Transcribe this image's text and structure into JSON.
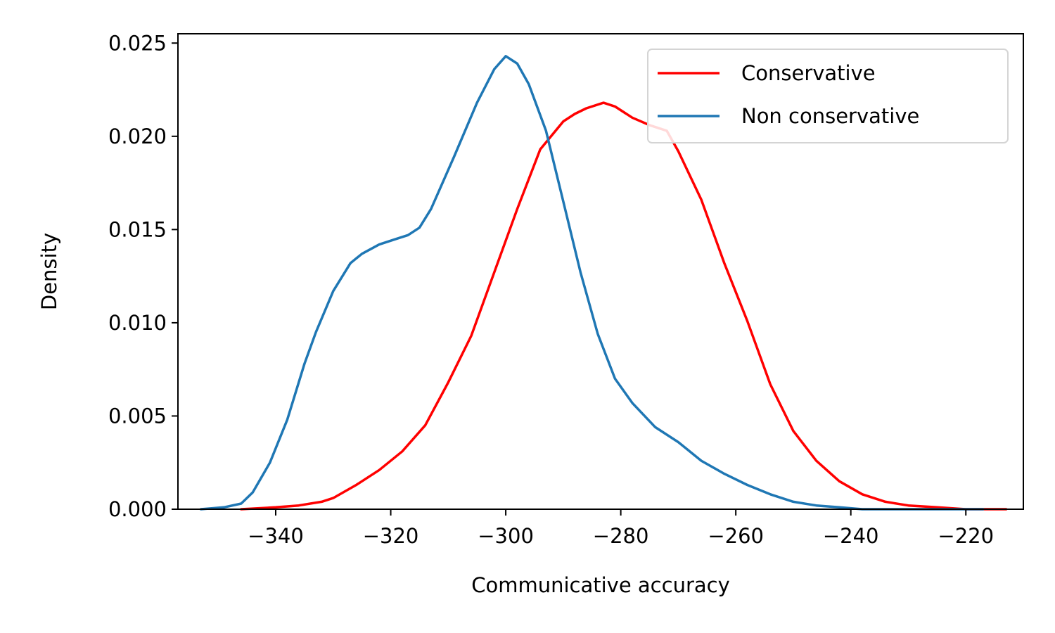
{
  "chart_data": {
    "type": "line",
    "title": "",
    "xlabel": "Communicative accuracy",
    "ylabel": "Density",
    "xlim": [
      -357,
      -210
    ],
    "ylim": [
      0,
      0.0255
    ],
    "xticks": [
      -340,
      -320,
      -300,
      -280,
      -260,
      -240,
      -220
    ],
    "xtick_labels": [
      "−340",
      "−320",
      "−300",
      "−280",
      "−260",
      "−240",
      "−220"
    ],
    "yticks": [
      0,
      0.005,
      0.01,
      0.015,
      0.02,
      0.025
    ],
    "ytick_labels": [
      "0.000",
      "0.005",
      "0.010",
      "0.015",
      "0.020",
      "0.025"
    ],
    "grid": false,
    "legend_position": "top-right",
    "series": [
      {
        "name": "Conservative",
        "color": "#ff0000",
        "points": [
          [
            -346,
            0.0
          ],
          [
            -340,
            0.0001
          ],
          [
            -336,
            0.0002
          ],
          [
            -332,
            0.0004
          ],
          [
            -330,
            0.0006
          ],
          [
            -326,
            0.0013
          ],
          [
            -322,
            0.0021
          ],
          [
            -318,
            0.0031
          ],
          [
            -314,
            0.0045
          ],
          [
            -310,
            0.0068
          ],
          [
            -306,
            0.0093
          ],
          [
            -302,
            0.0127
          ],
          [
            -298,
            0.0161
          ],
          [
            -294,
            0.0193
          ],
          [
            -290,
            0.0208
          ],
          [
            -288,
            0.0212
          ],
          [
            -286,
            0.0215
          ],
          [
            -283,
            0.0218
          ],
          [
            -281,
            0.0216
          ],
          [
            -278,
            0.021
          ],
          [
            -275,
            0.0206
          ],
          [
            -272,
            0.0203
          ],
          [
            -270,
            0.0192
          ],
          [
            -266,
            0.0166
          ],
          [
            -262,
            0.0132
          ],
          [
            -258,
            0.0101
          ],
          [
            -254,
            0.0067
          ],
          [
            -250,
            0.0042
          ],
          [
            -246,
            0.0026
          ],
          [
            -242,
            0.0015
          ],
          [
            -238,
            0.0008
          ],
          [
            -234,
            0.0004
          ],
          [
            -230,
            0.0002
          ],
          [
            -225,
            0.0001
          ],
          [
            -220,
            0.0
          ],
          [
            -213,
            0.0
          ]
        ]
      },
      {
        "name": "Non conservative",
        "color": "#1f77b4",
        "points": [
          [
            -353,
            0.0
          ],
          [
            -349,
            0.0001
          ],
          [
            -346,
            0.0003
          ],
          [
            -344,
            0.0009
          ],
          [
            -341,
            0.0025
          ],
          [
            -338,
            0.0048
          ],
          [
            -335,
            0.0078
          ],
          [
            -333,
            0.0095
          ],
          [
            -330,
            0.0117
          ],
          [
            -327,
            0.0132
          ],
          [
            -325,
            0.0137
          ],
          [
            -322,
            0.0142
          ],
          [
            -319,
            0.0145
          ],
          [
            -317,
            0.0147
          ],
          [
            -315,
            0.0151
          ],
          [
            -313,
            0.0161
          ],
          [
            -309,
            0.0189
          ],
          [
            -305,
            0.0218
          ],
          [
            -302,
            0.0236
          ],
          [
            -300,
            0.0243
          ],
          [
            -298,
            0.0239
          ],
          [
            -296,
            0.0228
          ],
          [
            -293,
            0.0203
          ],
          [
            -290,
            0.0165
          ],
          [
            -287,
            0.0127
          ],
          [
            -284,
            0.0094
          ],
          [
            -281,
            0.007
          ],
          [
            -278,
            0.0057
          ],
          [
            -274,
            0.0044
          ],
          [
            -270,
            0.0036
          ],
          [
            -266,
            0.0026
          ],
          [
            -262,
            0.0019
          ],
          [
            -258,
            0.0013
          ],
          [
            -254,
            0.0008
          ],
          [
            -250,
            0.0004
          ],
          [
            -246,
            0.0002
          ],
          [
            -242,
            0.0001
          ],
          [
            -238,
            0.0
          ],
          [
            -226,
            0.0
          ],
          [
            -217,
            0.0
          ]
        ]
      }
    ]
  }
}
